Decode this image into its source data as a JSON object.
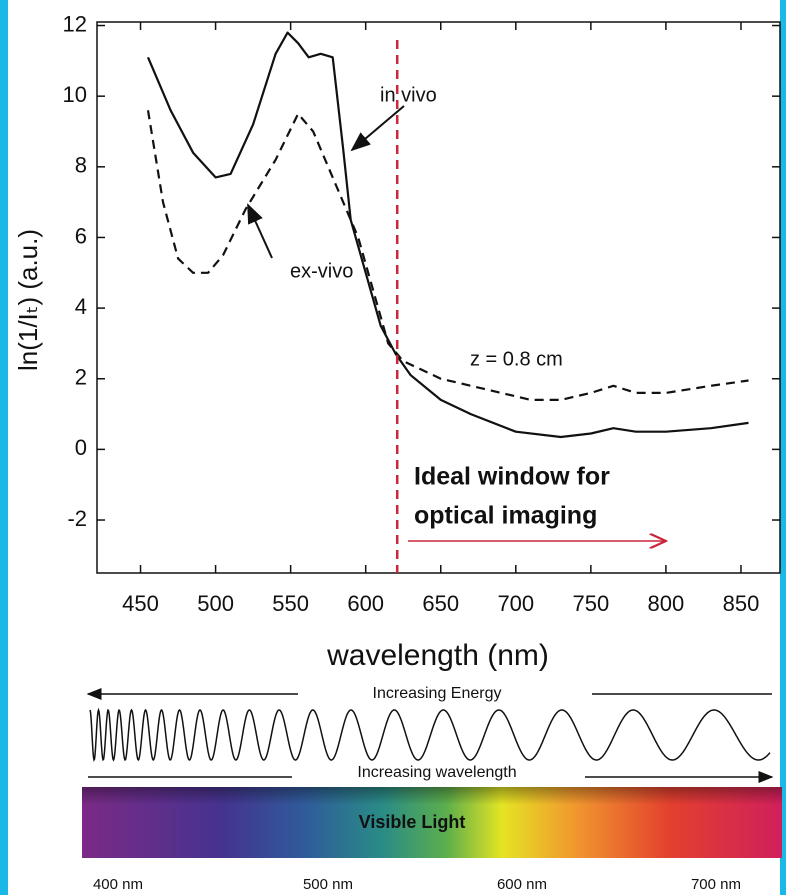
{
  "chart_data": {
    "type": "line",
    "xlabel": "wavelength (nm)",
    "ylabel": "ln(1/Iₜ)  (a.u.)",
    "xlim": [
      421,
      876
    ],
    "ylim": [
      -3.5,
      12.1
    ],
    "xticks": [
      450,
      500,
      550,
      600,
      650,
      700,
      750,
      800,
      850
    ],
    "yticks": [
      -2,
      0,
      2,
      4,
      6,
      8,
      10,
      12
    ],
    "series": [
      {
        "name": "in vivo",
        "color": "#111111",
        "dash": false,
        "x": [
          455,
          470,
          485,
          500,
          510,
          525,
          540,
          548,
          555,
          562,
          570,
          578,
          585,
          590,
          600,
          610,
          620,
          630,
          650,
          670,
          700,
          730,
          750,
          765,
          780,
          800,
          830,
          855
        ],
        "values": [
          11.1,
          9.6,
          8.4,
          7.7,
          7.8,
          9.2,
          11.2,
          11.8,
          11.5,
          11.1,
          11.2,
          11.1,
          8.5,
          6.5,
          5.0,
          3.5,
          2.7,
          2.1,
          1.4,
          1.0,
          0.5,
          0.35,
          0.45,
          0.6,
          0.5,
          0.5,
          0.6,
          0.75
        ]
      },
      {
        "name": "ex-vivo",
        "color": "#111111",
        "dash": true,
        "x": [
          455,
          465,
          475,
          485,
          495,
          505,
          520,
          530,
          540,
          555,
          565,
          580,
          595,
          605,
          615,
          625,
          650,
          680,
          710,
          730,
          750,
          765,
          780,
          800,
          830,
          855
        ],
        "values": [
          9.6,
          7.0,
          5.4,
          5.0,
          5.0,
          5.5,
          6.8,
          7.5,
          8.2,
          9.5,
          9.0,
          7.5,
          6.0,
          4.5,
          3.0,
          2.5,
          2.0,
          1.7,
          1.4,
          1.4,
          1.6,
          1.8,
          1.6,
          1.6,
          1.8,
          1.95
        ]
      }
    ],
    "vline": {
      "x": 621,
      "color": "#c8283a"
    },
    "annotations": {
      "in_vivo": "in vivo",
      "ex_vivo": "ex-vivo",
      "depth": "z = 0.8 cm",
      "window_line1": "Ideal window for",
      "window_line2": "optical imaging"
    }
  },
  "spectrum_diagram": {
    "energy_label": "Increasing Energy",
    "wavelength_label": "Increasing wavelength",
    "band_label": "Visible Light",
    "scale_labels": [
      "400 nm",
      "500 nm",
      "600 nm",
      "700 nm"
    ]
  }
}
